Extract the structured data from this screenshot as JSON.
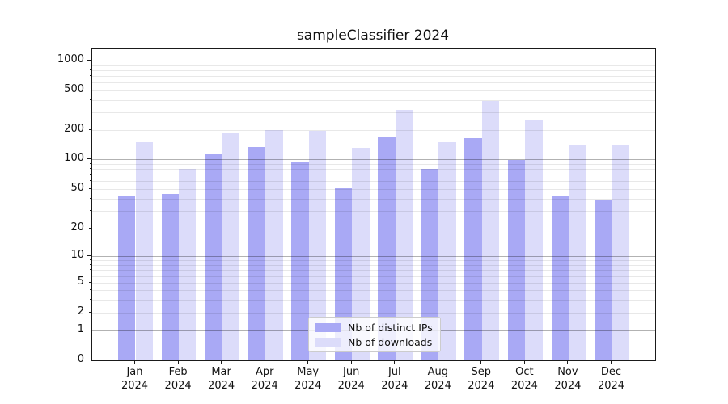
{
  "chart_data": {
    "type": "bar",
    "title": "sampleClassifier 2024",
    "categories": [
      "Jan 2024",
      "Feb 2024",
      "Mar 2024",
      "Apr 2024",
      "May 2024",
      "Jun 2024",
      "Jul 2024",
      "Aug 2024",
      "Sep 2024",
      "Oct 2024",
      "Nov 2024",
      "Dec 2024"
    ],
    "series": [
      {
        "name": "Nb of distinct IPs",
        "color": "#a9a9f5",
        "values": [
          43,
          44,
          114,
          134,
          94,
          51,
          172,
          80,
          165,
          98,
          42,
          39
        ]
      },
      {
        "name": "Nb of downloads",
        "color": "#dcdcfa",
        "values": [
          150,
          79,
          190,
          199,
          197,
          130,
          318,
          149,
          389,
          252,
          138,
          140
        ]
      }
    ],
    "yscale": "symlog",
    "ylim": [
      0,
      1300
    ],
    "y_tick_labels": [
      "1000",
      "500",
      "200",
      "100",
      "50",
      "20",
      "10",
      "5",
      "2",
      "1",
      "0"
    ],
    "grid": "on",
    "legend_position": "lower center",
    "xlabel": "",
    "ylabel": ""
  }
}
